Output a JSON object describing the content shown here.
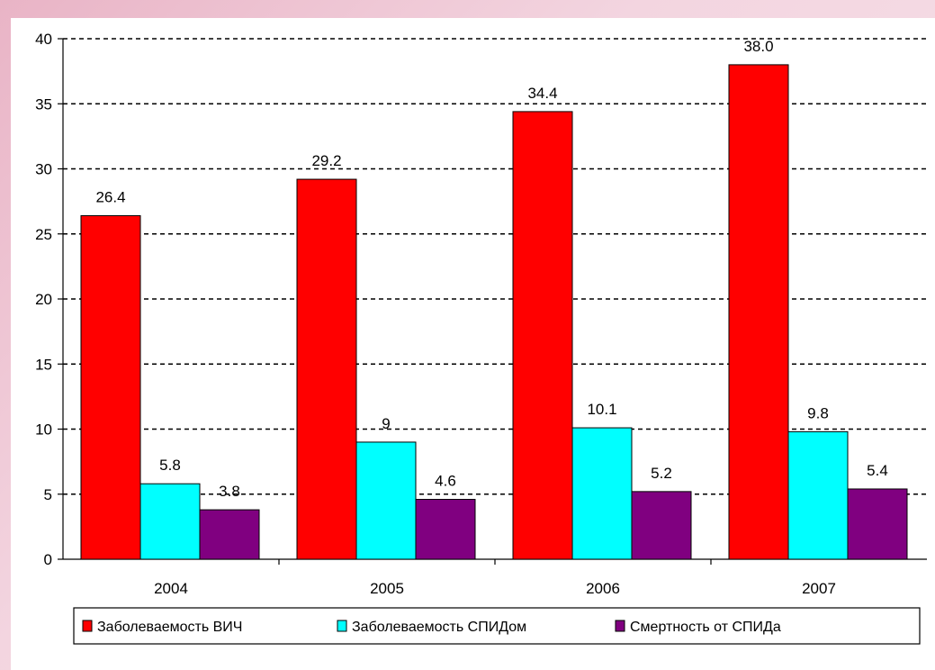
{
  "chart_data": {
    "type": "bar",
    "categories": [
      "2004",
      "2005",
      "2006",
      "2007"
    ],
    "series": [
      {
        "name": "Заболеваемость ВИЧ",
        "color": "#ff0000",
        "values": [
          26.4,
          29.2,
          34.4,
          38.0
        ],
        "labels": [
          "26.4",
          "29.2",
          "34.4",
          "38.0"
        ]
      },
      {
        "name": "Заболеваемость СПИДом",
        "color": "#00ffff",
        "values": [
          5.8,
          9,
          10.1,
          9.8
        ],
        "labels": [
          "5.8",
          "9",
          "10.1",
          "9.8"
        ]
      },
      {
        "name": "Смертность от СПИДа",
        "color": "#800080",
        "values": [
          3.8,
          4.6,
          5.2,
          5.4
        ],
        "labels": [
          "3.8",
          "4.6",
          "5.2",
          "5.4"
        ]
      }
    ],
    "y_ticks": [
      "0",
      "5",
      "10",
      "15",
      "20",
      "25",
      "30",
      "35",
      "40"
    ],
    "ylim": [
      0,
      40
    ],
    "grid": "horizontal-dashed",
    "legend_position": "bottom",
    "title": "",
    "xlabel": "",
    "ylabel": ""
  }
}
